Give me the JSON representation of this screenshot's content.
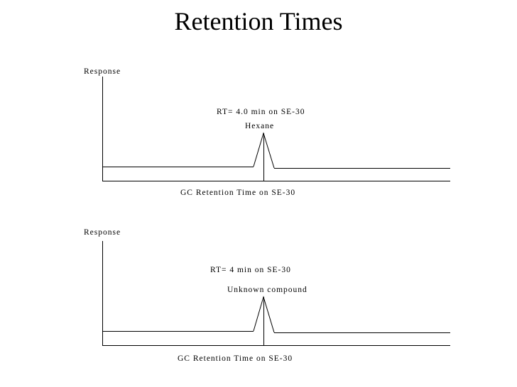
{
  "title": "Retention Times",
  "panels": [
    {
      "ylabel": "Response",
      "rt_label": "RT= 4.0 min on SE-30",
      "compound": "Hexane",
      "xlabel": "GC Retention Time on SE-30"
    },
    {
      "ylabel": "Response",
      "rt_label": "RT= 4 min on SE-30",
      "compound": "Unknown compound",
      "xlabel": "GC Retention Time on SE-30"
    }
  ]
}
